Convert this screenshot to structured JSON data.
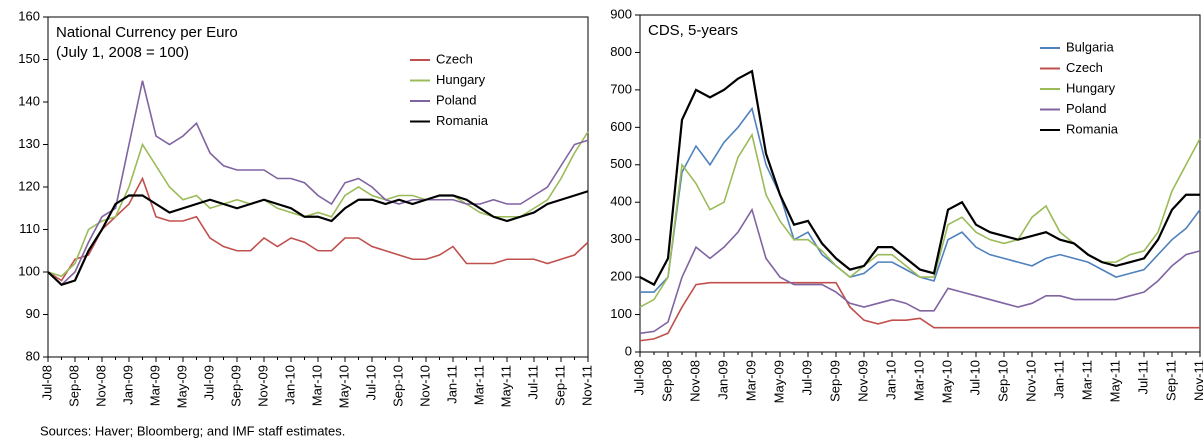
{
  "source": "Sources: Haver; Bloomberg; and IMF staff estimates.",
  "chart_data": [
    {
      "type": "line",
      "title": "National Currency per Euro",
      "subtitle": "(July 1, 2008 = 100)",
      "categories": [
        "Jul-08",
        null,
        "Sep-08",
        null,
        "Nov-08",
        null,
        "Jan-09",
        null,
        "Mar-09",
        null,
        "May-09",
        null,
        "Jul-09",
        null,
        "Sep-09",
        null,
        "Nov-09",
        null,
        "Jan-10",
        null,
        "Mar-10",
        null,
        "May-10",
        null,
        "Jul-10",
        null,
        "Sep-10",
        null,
        "Nov-10",
        null,
        "Jan-11",
        null,
        "Mar-11",
        null,
        "May-11",
        null,
        "Jul-11",
        null,
        "Sep-11",
        null,
        "Nov-11"
      ],
      "ylim": [
        80,
        160
      ],
      "yticks": [
        80,
        90,
        100,
        110,
        120,
        130,
        140,
        150,
        160
      ],
      "legend": "upper right",
      "series": [
        {
          "name": "Czech",
          "color": "#c0504d",
          "values": [
            100,
            98,
            103,
            104,
            110,
            113,
            116,
            122,
            113,
            112,
            112,
            113,
            108,
            106,
            105,
            105,
            108,
            106,
            108,
            107,
            105,
            105,
            108,
            108,
            106,
            105,
            104,
            103,
            103,
            104,
            106,
            102,
            102,
            102,
            103,
            103,
            103,
            102,
            103,
            104,
            107
          ]
        },
        {
          "name": "Hungary",
          "color": "#9bbb59",
          "values": [
            100,
            99,
            102,
            110,
            112,
            113,
            120,
            130,
            125,
            120,
            117,
            118,
            115,
            116,
            117,
            116,
            117,
            115,
            114,
            113,
            114,
            113,
            118,
            120,
            118,
            117,
            118,
            118,
            117,
            118,
            118,
            116,
            114,
            113,
            113,
            113,
            115,
            117,
            122,
            128,
            133
          ]
        },
        {
          "name": "Poland",
          "color": "#8064a2",
          "values": [
            100,
            97,
            100,
            107,
            113,
            115,
            130,
            145,
            132,
            130,
            132,
            135,
            128,
            125,
            124,
            124,
            124,
            122,
            122,
            121,
            118,
            116,
            121,
            122,
            120,
            117,
            116,
            117,
            117,
            117,
            117,
            116,
            116,
            117,
            116,
            116,
            118,
            120,
            125,
            130,
            131
          ]
        },
        {
          "name": "Romania",
          "color": "#000000",
          "values": [
            100,
            97,
            98,
            105,
            110,
            116,
            118,
            118,
            116,
            114,
            115,
            116,
            117,
            116,
            115,
            116,
            117,
            116,
            115,
            113,
            113,
            112,
            115,
            117,
            117,
            116,
            117,
            116,
            117,
            118,
            118,
            117,
            115,
            113,
            112,
            113,
            114,
            116,
            117,
            118,
            119
          ]
        }
      ]
    },
    {
      "type": "line",
      "title": "CDS, 5-years",
      "categories": [
        "Jul-08",
        null,
        "Sep-08",
        null,
        "Nov-08",
        null,
        "Jan-09",
        null,
        "Mar-09",
        null,
        "May-09",
        null,
        "Jul-09",
        null,
        "Sep-09",
        null,
        "Nov-09",
        null,
        "Jan-10",
        null,
        "Mar-10",
        null,
        "May-10",
        null,
        "Jul-10",
        null,
        "Sep-10",
        null,
        "Nov-10",
        null,
        "Jan-11",
        null,
        "Mar-11",
        null,
        "May-11",
        null,
        "Jul-11",
        null,
        "Sep-11",
        null,
        "Nov-11"
      ],
      "ylim": [
        0,
        900
      ],
      "yticks": [
        0,
        100,
        200,
        300,
        400,
        500,
        600,
        700,
        800,
        900
      ],
      "legend": "upper right",
      "series": [
        {
          "name": "Bulgaria",
          "color": "#4f81bd",
          "values": [
            160,
            160,
            200,
            480,
            550,
            500,
            560,
            600,
            650,
            500,
            420,
            300,
            320,
            260,
            230,
            200,
            210,
            240,
            240,
            220,
            200,
            190,
            300,
            320,
            280,
            260,
            250,
            240,
            230,
            250,
            260,
            250,
            240,
            220,
            200,
            210,
            220,
            260,
            300,
            330,
            380
          ]
        },
        {
          "name": "Czech",
          "color": "#c0504d",
          "values": [
            30,
            35,
            50,
            120,
            180,
            185,
            185,
            185,
            185,
            185,
            185,
            185,
            185,
            185,
            185,
            120,
            85,
            75,
            85,
            85,
            90,
            65,
            65,
            65,
            65,
            65,
            65,
            65,
            65,
            65,
            65,
            65,
            65,
            65,
            65,
            65,
            65,
            65,
            65,
            65,
            65
          ]
        },
        {
          "name": "Hungary",
          "color": "#9bbb59",
          "values": [
            120,
            140,
            200,
            500,
            450,
            380,
            400,
            520,
            580,
            420,
            350,
            300,
            300,
            270,
            230,
            200,
            230,
            260,
            260,
            230,
            200,
            200,
            340,
            360,
            320,
            300,
            290,
            300,
            360,
            390,
            320,
            290,
            260,
            240,
            240,
            260,
            270,
            320,
            430,
            500,
            570
          ]
        },
        {
          "name": "Poland",
          "color": "#8064a2",
          "values": [
            50,
            55,
            80,
            200,
            280,
            250,
            280,
            320,
            380,
            250,
            200,
            180,
            180,
            180,
            160,
            130,
            120,
            130,
            140,
            130,
            110,
            110,
            170,
            160,
            150,
            140,
            130,
            120,
            130,
            150,
            150,
            140,
            140,
            140,
            140,
            150,
            160,
            190,
            230,
            260,
            270
          ]
        },
        {
          "name": "Romania",
          "color": "#000000",
          "values": [
            200,
            180,
            250,
            620,
            700,
            680,
            700,
            730,
            750,
            530,
            420,
            340,
            350,
            290,
            250,
            220,
            230,
            280,
            280,
            250,
            220,
            210,
            380,
            400,
            340,
            320,
            310,
            300,
            310,
            320,
            300,
            290,
            260,
            240,
            230,
            240,
            250,
            300,
            380,
            420,
            420
          ]
        }
      ]
    }
  ]
}
